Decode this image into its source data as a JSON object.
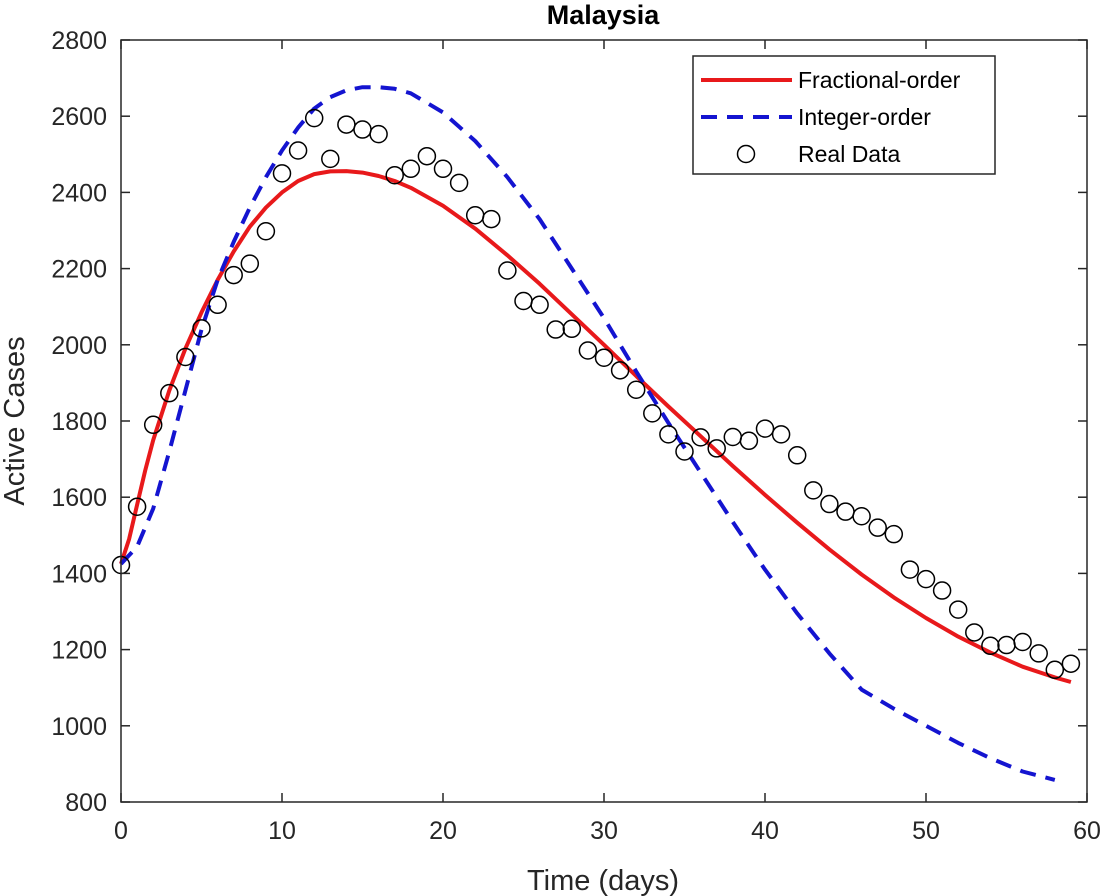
{
  "chart_data": {
    "type": "line",
    "title": "Malaysia",
    "xlabel": "Time (days)",
    "ylabel": "Active Cases",
    "xlim": [
      0,
      60
    ],
    "ylim": [
      800,
      2800
    ],
    "xticks": [
      0,
      10,
      20,
      30,
      40,
      50,
      60
    ],
    "yticks": [
      800,
      1000,
      1200,
      1400,
      1600,
      1800,
      2000,
      2200,
      2400,
      2600,
      2800
    ],
    "grid": false,
    "legend_position": "top-right",
    "series": [
      {
        "name": "Fractional-order",
        "style": "solid",
        "color": "#e8191b",
        "x": [
          0,
          0.5,
          1,
          1.5,
          2,
          3,
          4,
          5,
          6,
          7,
          8,
          9,
          10,
          11,
          12,
          13,
          14,
          15,
          16,
          17,
          18,
          20,
          22,
          24,
          26,
          28,
          30,
          32,
          34,
          36,
          38,
          40,
          42,
          44,
          46,
          48,
          50,
          52,
          54,
          56,
          58,
          59
        ],
        "values": [
          1425,
          1490,
          1580,
          1670,
          1750,
          1880,
          1990,
          2085,
          2170,
          2245,
          2310,
          2360,
          2400,
          2430,
          2448,
          2455,
          2456,
          2452,
          2443,
          2430,
          2412,
          2365,
          2305,
          2235,
          2160,
          2080,
          2000,
          1918,
          1838,
          1760,
          1682,
          1606,
          1533,
          1463,
          1397,
          1337,
          1283,
          1234,
          1192,
          1155,
          1127,
          1115
        ]
      },
      {
        "name": "Integer-order",
        "style": "dashed",
        "color": "#1414d0",
        "x": [
          0,
          1,
          2,
          3,
          4,
          5,
          6,
          7,
          8,
          9,
          10,
          11,
          12,
          13,
          14,
          15,
          16,
          17,
          18,
          20,
          22,
          24,
          26,
          28,
          30,
          32,
          34,
          36,
          38,
          40,
          42,
          44,
          46,
          48,
          50,
          52,
          54,
          56,
          58
        ],
        "values": [
          1425,
          1470,
          1570,
          1720,
          1880,
          2040,
          2170,
          2270,
          2360,
          2440,
          2510,
          2570,
          2620,
          2650,
          2668,
          2676,
          2676,
          2672,
          2660,
          2610,
          2535,
          2440,
          2330,
          2200,
          2070,
          1930,
          1795,
          1665,
          1535,
          1410,
          1295,
          1190,
          1095,
          1045,
          1000,
          955,
          915,
          880,
          858
        ]
      },
      {
        "name": "Real Data",
        "style": "markers",
        "marker": "circle",
        "color": "#000000",
        "x": [
          0,
          1,
          2,
          3,
          4,
          5,
          6,
          7,
          8,
          9,
          10,
          11,
          12,
          13,
          14,
          15,
          16,
          17,
          18,
          19,
          20,
          21,
          22,
          23,
          24,
          25,
          26,
          27,
          28,
          29,
          30,
          31,
          32,
          33,
          34,
          35,
          36,
          37,
          38,
          39,
          40,
          41,
          42,
          43,
          44,
          45,
          46,
          47,
          48,
          49,
          50,
          51,
          52,
          53,
          54,
          55,
          56,
          57,
          58,
          59
        ],
        "values": [
          1422,
          1575,
          1790,
          1873,
          1968,
          2043,
          2105,
          2183,
          2213,
          2298,
          2450,
          2510,
          2595,
          2488,
          2578,
          2565,
          2553,
          2445,
          2462,
          2495,
          2462,
          2425,
          2340,
          2330,
          2195,
          2115,
          2105,
          2040,
          2042,
          1985,
          1966,
          1933,
          1882,
          1820,
          1765,
          1720,
          1757,
          1728,
          1758,
          1748,
          1780,
          1765,
          1710,
          1618,
          1582,
          1562,
          1550,
          1520,
          1503,
          1410,
          1385,
          1355,
          1305,
          1245,
          1210,
          1212,
          1220,
          1190,
          1147,
          1163
        ]
      }
    ]
  }
}
